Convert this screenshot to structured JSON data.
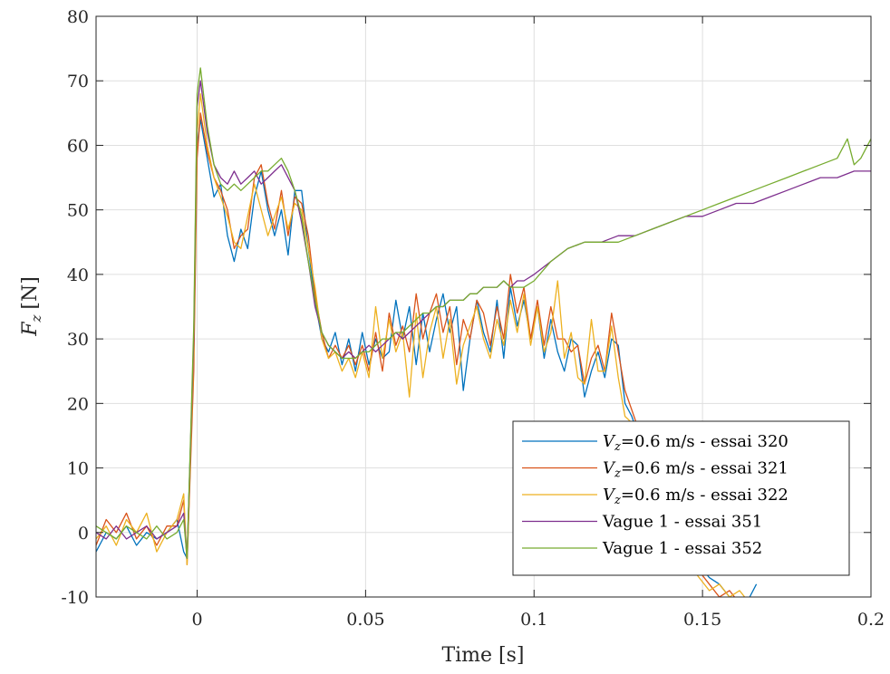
{
  "chart_data": {
    "type": "line",
    "xlabel": "Time [s]",
    "ylabel_main": "F",
    "ylabel_sub": "z",
    "ylabel_unit": "[N]",
    "xlim": [
      -0.03,
      0.2
    ],
    "ylim": [
      -10,
      80
    ],
    "xticks": [
      0,
      0.05,
      0.1,
      0.15,
      0.2
    ],
    "xtick_labels": [
      "0",
      "0.05",
      "0.1",
      "0.15",
      "0.2"
    ],
    "yticks": [
      -10,
      0,
      10,
      20,
      30,
      40,
      50,
      60,
      70,
      80
    ],
    "ytick_labels": [
      "-10",
      "0",
      "10",
      "20",
      "30",
      "40",
      "50",
      "60",
      "70",
      "80"
    ],
    "grid": true,
    "legend_position": "bottom-right",
    "series": [
      {
        "name": "V_z=0.6 m/s - essai 320",
        "legend_v": "V",
        "legend_sub": "z",
        "legend_rest": "=0.6 m/s - essai 320",
        "color": "#0072BD",
        "x": [
          -0.03,
          -0.027,
          -0.024,
          -0.021,
          -0.018,
          -0.015,
          -0.012,
          -0.009,
          -0.006,
          -0.004,
          -0.003,
          -0.001,
          0,
          0.001,
          0.003,
          0.005,
          0.007,
          0.009,
          0.011,
          0.013,
          0.015,
          0.017,
          0.019,
          0.021,
          0.023,
          0.025,
          0.027,
          0.029,
          0.031,
          0.033,
          0.035,
          0.037,
          0.039,
          0.041,
          0.043,
          0.045,
          0.047,
          0.049,
          0.051,
          0.053,
          0.055,
          0.057,
          0.059,
          0.061,
          0.063,
          0.065,
          0.067,
          0.069,
          0.071,
          0.073,
          0.075,
          0.077,
          0.079,
          0.081,
          0.083,
          0.085,
          0.087,
          0.089,
          0.091,
          0.093,
          0.095,
          0.097,
          0.099,
          0.101,
          0.103,
          0.105,
          0.107,
          0.109,
          0.111,
          0.113,
          0.115,
          0.117,
          0.119,
          0.121,
          0.123,
          0.125,
          0.127,
          0.129,
          0.131,
          0.134,
          0.137,
          0.14,
          0.143,
          0.146,
          0.149,
          0.152,
          0.155,
          0.158,
          0.161,
          0.164,
          0.166
        ],
        "y": [
          -3,
          0,
          -1,
          1,
          -2,
          0,
          -1,
          0,
          2,
          -3,
          -4,
          30,
          60,
          64,
          58,
          52,
          54,
          46,
          42,
          47,
          44,
          52,
          56,
          50,
          46,
          50,
          43,
          53,
          53,
          44,
          36,
          30,
          28,
          31,
          26,
          30,
          25,
          31,
          26,
          30,
          27,
          28,
          36,
          30,
          35,
          26,
          34,
          28,
          33,
          37,
          31,
          35,
          22,
          30,
          36,
          31,
          28,
          36,
          27,
          38,
          32,
          36,
          30,
          35,
          27,
          33,
          28,
          25,
          30,
          29,
          21,
          25,
          28,
          24,
          30,
          29,
          20,
          18,
          15,
          12,
          8,
          3,
          0,
          -2,
          -5,
          -7,
          -8,
          -10,
          -12,
          -10,
          -8
        ],
        "stroke_width": 1.3
      },
      {
        "name": "V_z=0.6 m/s - essai 321",
        "legend_v": "V",
        "legend_sub": "z",
        "legend_rest": "=0.6 m/s - essai 321",
        "color": "#D95319",
        "x": [
          -0.03,
          -0.027,
          -0.024,
          -0.021,
          -0.018,
          -0.015,
          -0.012,
          -0.009,
          -0.006,
          -0.004,
          -0.003,
          -0.001,
          0,
          0.001,
          0.003,
          0.005,
          0.007,
          0.009,
          0.011,
          0.013,
          0.015,
          0.017,
          0.019,
          0.021,
          0.023,
          0.025,
          0.027,
          0.029,
          0.031,
          0.033,
          0.035,
          0.037,
          0.039,
          0.041,
          0.043,
          0.045,
          0.047,
          0.049,
          0.051,
          0.053,
          0.055,
          0.057,
          0.059,
          0.061,
          0.063,
          0.065,
          0.067,
          0.069,
          0.071,
          0.073,
          0.075,
          0.077,
          0.079,
          0.081,
          0.083,
          0.085,
          0.087,
          0.089,
          0.091,
          0.093,
          0.095,
          0.097,
          0.099,
          0.101,
          0.103,
          0.105,
          0.107,
          0.109,
          0.111,
          0.113,
          0.115,
          0.117,
          0.119,
          0.121,
          0.123,
          0.125,
          0.127,
          0.129,
          0.131,
          0.134,
          0.137,
          0.14,
          0.143,
          0.146,
          0.149,
          0.152,
          0.155,
          0.158,
          0.161,
          0.164
        ],
        "y": [
          -2,
          2,
          0,
          3,
          -1,
          1,
          -2,
          1,
          1,
          5,
          -5,
          25,
          58,
          65,
          59,
          55,
          53,
          50,
          44,
          46,
          47,
          55,
          57,
          51,
          47,
          53,
          46,
          52,
          51,
          46,
          37,
          31,
          27,
          29,
          27,
          29,
          26,
          29,
          25,
          31,
          25,
          34,
          29,
          32,
          28,
          37,
          30,
          34,
          37,
          31,
          35,
          26,
          33,
          30,
          36,
          34,
          29,
          35,
          30,
          40,
          34,
          38,
          30,
          36,
          29,
          35,
          30,
          30,
          28,
          29,
          23,
          27,
          29,
          25,
          34,
          28,
          22,
          19,
          16,
          12,
          7,
          3,
          -2,
          -4,
          -6,
          -8,
          -10,
          -9,
          -11,
          -10
        ],
        "stroke_width": 1.3
      },
      {
        "name": "V_z=0.6 m/s - essai 322",
        "legend_v": "V",
        "legend_sub": "z",
        "legend_rest": "=0.6 m/s - essai 322",
        "color": "#EDB120",
        "x": [
          -0.03,
          -0.027,
          -0.024,
          -0.021,
          -0.018,
          -0.015,
          -0.012,
          -0.009,
          -0.006,
          -0.004,
          -0.003,
          -0.001,
          0,
          0.001,
          0.003,
          0.005,
          0.007,
          0.009,
          0.011,
          0.013,
          0.015,
          0.017,
          0.019,
          0.021,
          0.023,
          0.025,
          0.027,
          0.029,
          0.031,
          0.033,
          0.035,
          0.037,
          0.039,
          0.041,
          0.043,
          0.045,
          0.047,
          0.049,
          0.051,
          0.053,
          0.055,
          0.057,
          0.059,
          0.061,
          0.063,
          0.065,
          0.067,
          0.069,
          0.071,
          0.073,
          0.075,
          0.077,
          0.079,
          0.081,
          0.083,
          0.085,
          0.087,
          0.089,
          0.091,
          0.093,
          0.095,
          0.097,
          0.099,
          0.101,
          0.103,
          0.105,
          0.107,
          0.109,
          0.111,
          0.113,
          0.115,
          0.117,
          0.119,
          0.121,
          0.123,
          0.125,
          0.127,
          0.129,
          0.131,
          0.134,
          0.137,
          0.14,
          0.143,
          0.146,
          0.149,
          0.152,
          0.155,
          0.158,
          0.161,
          0.164
        ],
        "y": [
          -1,
          1,
          -2,
          2,
          0,
          3,
          -3,
          0,
          2,
          6,
          -5,
          28,
          62,
          68,
          60,
          55,
          52,
          49,
          45,
          44,
          49,
          54,
          50,
          46,
          49,
          52,
          47,
          51,
          50,
          44,
          38,
          30,
          27,
          28,
          25,
          27,
          24,
          28,
          24,
          35,
          27,
          33,
          28,
          31,
          21,
          34,
          24,
          31,
          35,
          27,
          33,
          23,
          29,
          32,
          35,
          30,
          27,
          33,
          29,
          36,
          31,
          37,
          29,
          35,
          28,
          31,
          39,
          27,
          31,
          24,
          23,
          33,
          25,
          25,
          32,
          24,
          18,
          17,
          14,
          11,
          6,
          2,
          -3,
          -5,
          -7,
          -9,
          -8,
          -10,
          -9,
          -11
        ],
        "stroke_width": 1.3
      },
      {
        "name": "Vague 1 - essai 351",
        "legend_v": "",
        "legend_sub": "",
        "legend_rest": "Vague 1 - essai 351",
        "color": "#7E2F8E",
        "x": [
          -0.03,
          -0.027,
          -0.024,
          -0.021,
          -0.018,
          -0.015,
          -0.012,
          -0.009,
          -0.006,
          -0.004,
          -0.003,
          -0.001,
          0,
          0.001,
          0.003,
          0.005,
          0.007,
          0.009,
          0.011,
          0.013,
          0.015,
          0.017,
          0.019,
          0.021,
          0.023,
          0.025,
          0.027,
          0.029,
          0.031,
          0.033,
          0.035,
          0.037,
          0.039,
          0.041,
          0.043,
          0.045,
          0.047,
          0.049,
          0.051,
          0.053,
          0.055,
          0.057,
          0.059,
          0.061,
          0.063,
          0.065,
          0.067,
          0.069,
          0.071,
          0.073,
          0.075,
          0.077,
          0.079,
          0.081,
          0.083,
          0.085,
          0.087,
          0.089,
          0.091,
          0.093,
          0.095,
          0.097,
          0.1,
          0.105,
          0.11,
          0.115,
          0.12,
          0.125,
          0.13,
          0.135,
          0.14,
          0.145,
          0.15,
          0.155,
          0.16,
          0.165,
          0.17,
          0.175,
          0.18,
          0.185,
          0.19,
          0.195,
          0.2
        ],
        "y": [
          0,
          -1,
          1,
          -1,
          0,
          1,
          -1,
          0,
          1,
          3,
          -4,
          30,
          66,
          70,
          62,
          57,
          55,
          54,
          56,
          54,
          55,
          56,
          54,
          55,
          56,
          57,
          55,
          53,
          48,
          42,
          35,
          31,
          29,
          28,
          27,
          28,
          27,
          28,
          29,
          28,
          29,
          30,
          31,
          30,
          31,
          32,
          33,
          34,
          35,
          35,
          36,
          36,
          36,
          37,
          37,
          38,
          38,
          38,
          39,
          38,
          39,
          39,
          40,
          42,
          44,
          45,
          45,
          46,
          46,
          47,
          48,
          49,
          49,
          50,
          51,
          51,
          52,
          53,
          54,
          55,
          55,
          56,
          56
        ],
        "stroke_width": 1.3
      },
      {
        "name": "Vague 1 - essai 352",
        "legend_v": "",
        "legend_sub": "",
        "legend_rest": "Vague 1 - essai 352",
        "color": "#77AC30",
        "x": [
          -0.03,
          -0.027,
          -0.024,
          -0.021,
          -0.018,
          -0.015,
          -0.012,
          -0.009,
          -0.006,
          -0.004,
          -0.003,
          -0.001,
          0,
          0.001,
          0.003,
          0.005,
          0.007,
          0.009,
          0.011,
          0.013,
          0.015,
          0.017,
          0.019,
          0.021,
          0.023,
          0.025,
          0.027,
          0.029,
          0.031,
          0.033,
          0.035,
          0.037,
          0.039,
          0.041,
          0.043,
          0.045,
          0.047,
          0.049,
          0.051,
          0.053,
          0.055,
          0.057,
          0.059,
          0.061,
          0.063,
          0.065,
          0.067,
          0.069,
          0.071,
          0.073,
          0.075,
          0.077,
          0.079,
          0.081,
          0.083,
          0.085,
          0.087,
          0.089,
          0.091,
          0.093,
          0.095,
          0.097,
          0.1,
          0.105,
          0.11,
          0.115,
          0.12,
          0.125,
          0.13,
          0.135,
          0.14,
          0.145,
          0.15,
          0.155,
          0.16,
          0.165,
          0.17,
          0.175,
          0.18,
          0.185,
          0.19,
          0.193,
          0.195,
          0.197,
          0.2
        ],
        "y": [
          1,
          0,
          -1,
          1,
          0,
          -1,
          1,
          -1,
          0,
          2,
          -4,
          32,
          68,
          72,
          63,
          57,
          54,
          53,
          54,
          53,
          54,
          55,
          56,
          56,
          57,
          58,
          56,
          53,
          49,
          42,
          36,
          31,
          29,
          28,
          27,
          27,
          27,
          28,
          28,
          29,
          30,
          30,
          31,
          31,
          32,
          33,
          34,
          34,
          35,
          35,
          36,
          36,
          36,
          37,
          37,
          38,
          38,
          38,
          39,
          38,
          38,
          38,
          39,
          42,
          44,
          45,
          45,
          45,
          46,
          47,
          48,
          49,
          50,
          51,
          52,
          53,
          54,
          55,
          56,
          57,
          58,
          61,
          57,
          58,
          61
        ],
        "stroke_width": 1.3
      }
    ]
  }
}
